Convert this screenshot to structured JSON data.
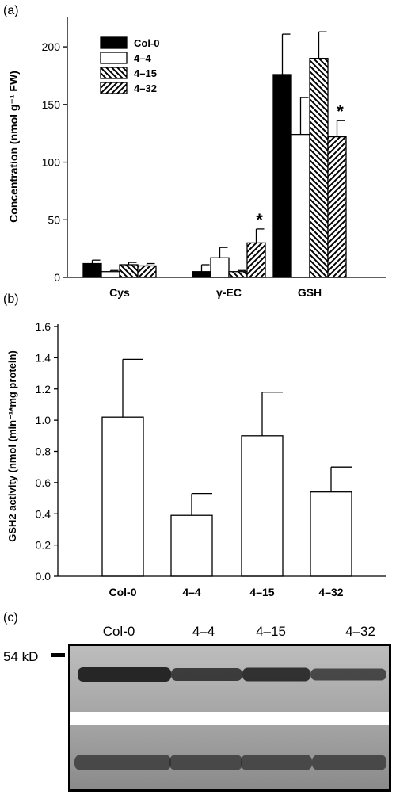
{
  "chart_data": [
    {
      "panel": "(a)",
      "type": "bar",
      "categories": [
        "Cys",
        "γ-EC",
        "GSH"
      ],
      "ylabel": "Concentration (nmol  g⁻¹ FW)",
      "ylim": [
        0,
        220
      ],
      "yticks": [
        0,
        50,
        100,
        150,
        200
      ],
      "legend_position": "top-left",
      "series": [
        {
          "name": "Col-0",
          "fill": "black",
          "values": [
            12,
            5,
            176
          ],
          "errors": [
            3,
            6,
            35
          ]
        },
        {
          "name": "4–4",
          "fill": "white",
          "values": [
            5,
            17,
            124
          ],
          "errors": [
            1,
            9,
            32
          ]
        },
        {
          "name": "4–15",
          "fill": "hatch-back",
          "values": [
            11,
            5,
            190
          ],
          "errors": [
            2,
            1,
            23
          ]
        },
        {
          "name": "4–32",
          "fill": "hatch-forward",
          "values": [
            10,
            30,
            122
          ],
          "errors": [
            2,
            12,
            14
          ]
        }
      ],
      "annotations": [
        {
          "text": "*",
          "category": "γ-EC",
          "series": "4–32"
        },
        {
          "text": "*",
          "category": "GSH",
          "series": "4–32"
        }
      ]
    },
    {
      "panel": "(b)",
      "type": "bar",
      "categories": [
        "Col-0",
        "4–4",
        "4–15",
        "4–32"
      ],
      "values": [
        1.02,
        0.39,
        0.9,
        0.54
      ],
      "errors": [
        0.37,
        0.14,
        0.28,
        0.16
      ],
      "ylabel": "GSH2 activity (nmol (min⁻¹*mg protein)",
      "ylim": [
        0,
        1.6
      ],
      "yticks": [
        "0.0",
        "0.2",
        "0.4",
        "0.6",
        "0.8",
        "1.0",
        "1.2",
        "1.4",
        "1.6"
      ]
    }
  ],
  "blot": {
    "panel": "(c)",
    "lanes": [
      "Col-0",
      "4–4",
      "4–15",
      "4–32"
    ],
    "marker": "54 kD"
  }
}
